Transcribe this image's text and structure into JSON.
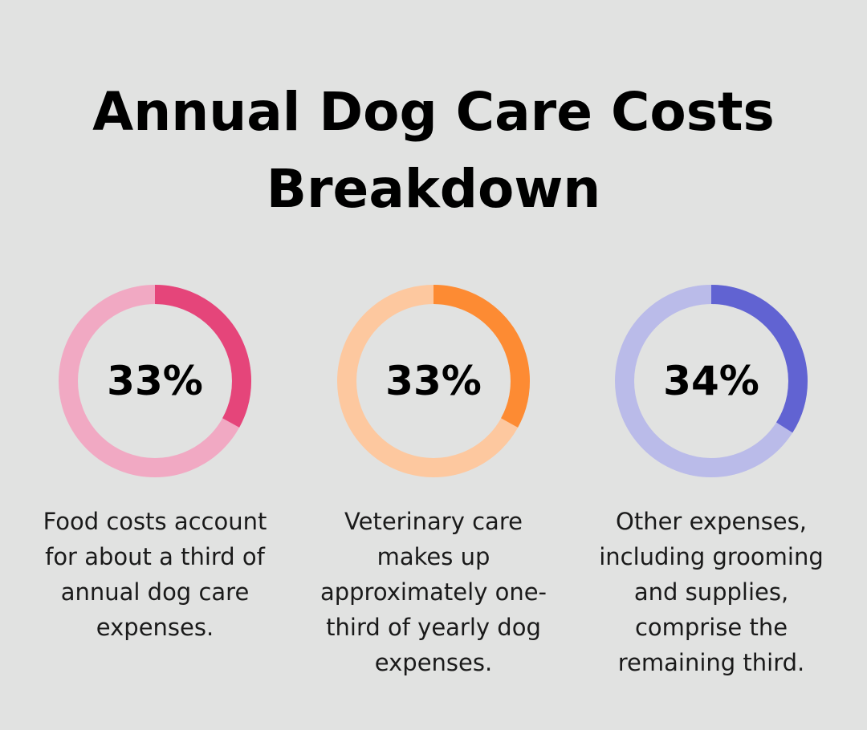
{
  "title_line1": "Annual Dog Care Costs",
  "title_line2": "Breakdown",
  "chart_data": {
    "type": "pie",
    "categories": [
      "Food costs",
      "Veterinary care",
      "Other expenses"
    ],
    "values": [
      33,
      33,
      34
    ],
    "stats": [
      {
        "value": 33,
        "label": "33%",
        "description": "Food costs account for about a third of annual dog care expenses.",
        "color_fill": "#e5457a",
        "color_track": "#f1a9c3"
      },
      {
        "value": 33,
        "label": "33%",
        "description": "Veterinary care makes up approximately one-third of yearly dog expenses.",
        "color_fill": "#fd8b33",
        "color_track": "#fdc89f"
      },
      {
        "value": 34,
        "label": "34%",
        "description": "Other expenses, including grooming and supplies, comprise the remaining third.",
        "color_fill": "#6163d2",
        "color_track": "#babbe9"
      }
    ]
  }
}
